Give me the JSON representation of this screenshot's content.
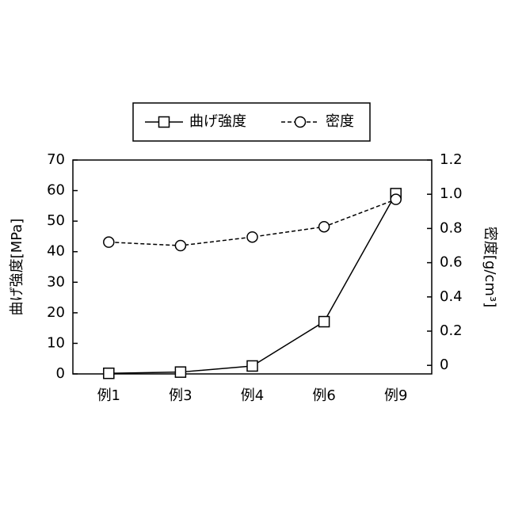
{
  "chart_data": {
    "type": "line",
    "categories": [
      "例1",
      "例3",
      "例4",
      "例6",
      "例9"
    ],
    "series": [
      {
        "name": "曲げ強度",
        "color": "#000000",
        "marker": "square",
        "dashed": false,
        "values": [
          0.2,
          0.6,
          2.6,
          17.1,
          59
        ]
      },
      {
        "name": "密度",
        "color": "#000000",
        "marker": "circle",
        "dashed": true,
        "axis": "y2",
        "values": [
          0.72,
          0.7,
          0.75,
          0.81,
          0.97
        ]
      }
    ],
    "ylabel": "曲げ強度[MPa]",
    "y2label": "密度[g/cm³]",
    "ylim": [
      0,
      70
    ],
    "yticks": [
      0,
      10,
      20,
      30,
      40,
      50,
      60,
      70
    ],
    "y2lim": [
      -0.05,
      1.2
    ],
    "y2ticks": [
      0,
      0.2,
      0.4,
      0.6,
      0.8,
      {
        "value": 1,
        "label": "1.0"
      },
      1.2
    ],
    "legend": "top"
  }
}
